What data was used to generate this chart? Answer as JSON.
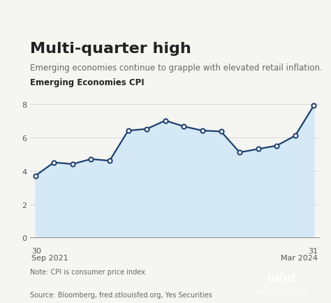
{
  "title": "Multi-quarter high",
  "subtitle": "Emerging economies continue to grapple with elevated retail inflation.",
  "chart_label": "Emerging Economies CPI",
  "y_values": [
    3.7,
    4.5,
    4.4,
    4.7,
    4.6,
    6.4,
    6.5,
    7.0,
    6.65,
    6.4,
    6.35,
    5.1,
    5.3,
    5.5,
    6.1,
    7.9
  ],
  "x_indices": [
    0,
    1,
    2,
    3,
    4,
    5,
    6,
    7,
    8,
    9,
    10,
    11,
    12,
    13,
    14,
    15
  ],
  "ylim": [
    0,
    8.8
  ],
  "yticks": [
    0,
    2,
    4,
    6,
    8
  ],
  "line_color": "#1b3f6e",
  "fill_color": "#d5e8f5",
  "marker_face": "#f5f5f2",
  "background_color": "#f5f5f2",
  "note": "Note: CPI is consumer price index",
  "source": "Source: Bloomberg, fred.stlouisfed.org, Yes Securities",
  "mint_bg": "#f5a800",
  "mint_text": "mint",
  "mint_subtext": "Think Ahead. Think Growth.",
  "title_fontsize": 16,
  "subtitle_fontsize": 8.5,
  "chart_label_fontsize": 8.5,
  "axis_fontsize": 8,
  "note_fontsize": 7,
  "source_fontsize": 7
}
